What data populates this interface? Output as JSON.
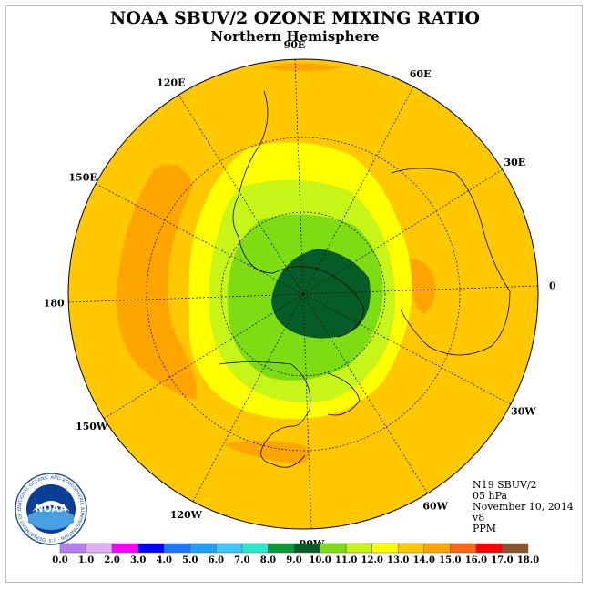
{
  "title": "NOAA SBUV/2 OZONE MIXING RATIO",
  "subtitle": "Northern Hemisphere",
  "longitude_labels": [
    "90E",
    "60E",
    "30E",
    "0",
    "30W",
    "60W",
    "90W",
    "120W",
    "150W",
    "180",
    "150E",
    "120E"
  ],
  "info": {
    "satellite": "N19 SBUV/2",
    "level": "05 hPa",
    "date": "November 10, 2014",
    "version": "v8",
    "units": "PPM"
  },
  "logo": {
    "center_text": "NOAA",
    "ring_text": "NATIONAL OCEANIC AND ATMOSPHERIC ADMINISTRATION · U.S. DEPARTMENT OF COMMERCE"
  },
  "colorbar": {
    "ticks": [
      "0.0",
      "1.0",
      "2.0",
      "3.0",
      "4.0",
      "5.0",
      "6.0",
      "7.0",
      "8.0",
      "9.0",
      "10.0",
      "11.0",
      "12.0",
      "13.0",
      "14.0",
      "15.0",
      "16.0",
      "17.0",
      "18.0"
    ],
    "colors": [
      "#b57ef5",
      "#e0b0f0",
      "#ff00ff",
      "#0000ff",
      "#1a78ff",
      "#1ea0ff",
      "#3cc8ff",
      "#2ae8c8",
      "#0a9a3a",
      "#055c26",
      "#7ddc12",
      "#c8f518",
      "#ffff00",
      "#ffc800",
      "#ffa500",
      "#ff6a10",
      "#ff0000",
      "#8b5530"
    ]
  },
  "field": {
    "background_level": "13.0-14.0",
    "colors": {
      "ppm_14_15": "#ffa500",
      "ppm_13_14": "#ffc800",
      "ppm_12_13": "#ffff00",
      "ppm_11_12": "#c8f518",
      "ppm_10_11": "#7ddc12",
      "ppm_9_10": "#055c26"
    }
  }
}
